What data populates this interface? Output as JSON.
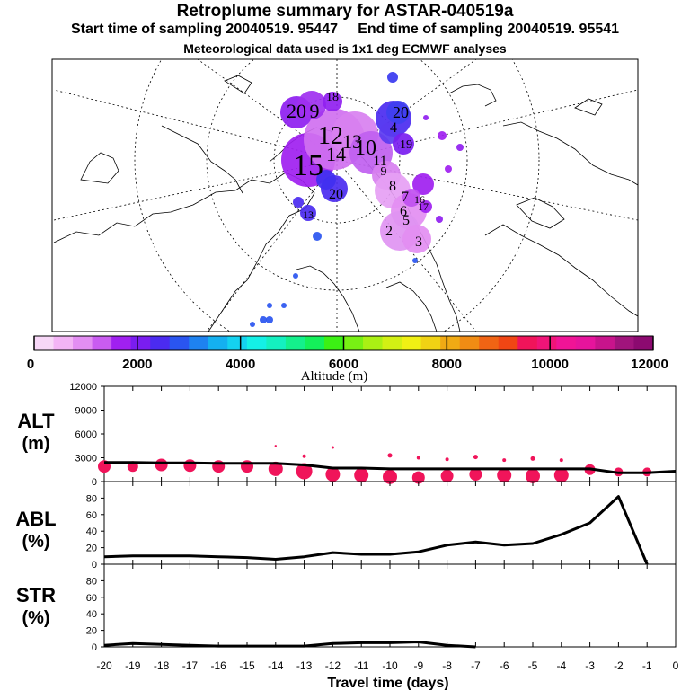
{
  "header": {
    "title": "Retroplume summary for ASTAR-040519a",
    "start": "Start time of sampling 20040519. 95447",
    "end": "End time of sampling 20040519. 95541",
    "met": "Meteorological data used is 1x1 deg ECMWF analyses"
  },
  "colorbar": {
    "label": "Altitude (m)",
    "ticks": [
      "0",
      "2000",
      "4000",
      "6000",
      "8000",
      "10000",
      "12000"
    ],
    "colors": [
      "#f7d7f7",
      "#f3b4f5",
      "#e38ef2",
      "#c95cf0",
      "#a020f0",
      "#7a1df0",
      "#4b2bf0",
      "#2a55f0",
      "#1e82f0",
      "#14b0f0",
      "#14d2f0",
      "#14f0e6",
      "#14f0c0",
      "#14f08c",
      "#14f05a",
      "#3cf014",
      "#78f014",
      "#aaf014",
      "#d2f014",
      "#f0f014",
      "#f0d214",
      "#f0aa14",
      "#f08c14",
      "#f06414",
      "#f04614",
      "#f0145a",
      "#f01478",
      "#f01496",
      "#e6149c",
      "#c8148c",
      "#a0147c",
      "#8c0a70"
    ]
  },
  "map": {
    "labels": [
      "20",
      "9",
      "18",
      "20",
      "4",
      "12",
      "19",
      "15",
      "20",
      "10",
      "11",
      "9",
      "8",
      "7",
      "6",
      "5",
      "13",
      "14",
      "2",
      "3",
      "16",
      "17",
      "13"
    ]
  },
  "panels": {
    "alt": {
      "l1": "ALT",
      "l2": "(m)"
    },
    "abl": {
      "l1": "ABL",
      "l2": "(%)"
    },
    "str": {
      "l1": "STR",
      "l2": "(%)"
    },
    "xlabel": "Travel time (days)"
  },
  "chart_data": [
    {
      "type": "line",
      "name": "ALT",
      "ylabel": "ALT (m)",
      "ylim": [
        0,
        12000
      ],
      "yticks": [
        "0",
        "3000",
        "6000",
        "9000",
        "12000"
      ],
      "x": [
        -20,
        -19,
        -18,
        -17,
        -16,
        -15,
        -14,
        -13,
        -12,
        -11,
        -10,
        -9,
        -8,
        -7,
        -6,
        -5,
        -4,
        -3,
        -2,
        -1,
        0
      ],
      "values": [
        2400,
        2400,
        2350,
        2350,
        2300,
        2300,
        2300,
        2100,
        1700,
        1700,
        1600,
        1600,
        1600,
        1600,
        1600,
        1600,
        1600,
        1600,
        1100,
        1100,
        1300
      ],
      "scatter": [
        {
          "x": -20,
          "y": 1900,
          "size": 7
        },
        {
          "x": -19,
          "y": 1900,
          "size": 6
        },
        {
          "x": -18,
          "y": 2100,
          "size": 7
        },
        {
          "x": -17,
          "y": 2000,
          "size": 7
        },
        {
          "x": -16,
          "y": 1900,
          "size": 7
        },
        {
          "x": -15,
          "y": 1900,
          "size": 7
        },
        {
          "x": -14,
          "y": 1600,
          "size": 8
        },
        {
          "x": -13,
          "y": 1300,
          "size": 9
        },
        {
          "x": -12,
          "y": 900,
          "size": 8
        },
        {
          "x": -11,
          "y": 800,
          "size": 8
        },
        {
          "x": -10,
          "y": 600,
          "size": 8
        },
        {
          "x": -9,
          "y": 500,
          "size": 7
        },
        {
          "x": -8,
          "y": 700,
          "size": 7
        },
        {
          "x": -7,
          "y": 900,
          "size": 7
        },
        {
          "x": -6,
          "y": 800,
          "size": 8
        },
        {
          "x": -5,
          "y": 700,
          "size": 8
        },
        {
          "x": -4,
          "y": 800,
          "size": 8
        },
        {
          "x": -3,
          "y": 1500,
          "size": 6
        },
        {
          "x": -2,
          "y": 1200,
          "size": 5
        },
        {
          "x": -1,
          "y": 1200,
          "size": 5
        },
        {
          "x": -12,
          "y": 4300,
          "size": 1.5
        },
        {
          "x": -10,
          "y": 3300,
          "size": 2.5
        },
        {
          "x": -9,
          "y": 3000,
          "size": 2
        },
        {
          "x": -8,
          "y": 2800,
          "size": 2
        },
        {
          "x": -7,
          "y": 3100,
          "size": 2.5
        },
        {
          "x": -6,
          "y": 2700,
          "size": 2
        },
        {
          "x": -5,
          "y": 2900,
          "size": 2.5
        },
        {
          "x": -4,
          "y": 2700,
          "size": 2
        },
        {
          "x": -13,
          "y": 3200,
          "size": 2
        },
        {
          "x": -14,
          "y": 4500,
          "size": 1.2
        }
      ]
    },
    {
      "type": "line",
      "name": "ABL",
      "ylabel": "ABL (%)",
      "ylim": [
        0,
        100
      ],
      "yticks": [
        "0",
        "20",
        "40",
        "60",
        "80"
      ],
      "x": [
        -20,
        -19,
        -18,
        -17,
        -16,
        -15,
        -14,
        -13,
        -12,
        -11,
        -10,
        -9,
        -8,
        -7,
        -6,
        -5,
        -4,
        -3,
        -2,
        -1
      ],
      "values": [
        9,
        10,
        10,
        10,
        9,
        8,
        6,
        9,
        14,
        12,
        12,
        15,
        23,
        27,
        23,
        25,
        36,
        50,
        82,
        0
      ]
    },
    {
      "type": "line",
      "name": "STR",
      "ylabel": "STR (%)",
      "ylim": [
        0,
        100
      ],
      "yticks": [
        "0",
        "20",
        "40",
        "60",
        "80"
      ],
      "x": [
        -20,
        -19,
        -18,
        -17,
        -16,
        -15,
        -14,
        -13,
        -12,
        -11,
        -10,
        -9,
        -8,
        -7
      ],
      "values": [
        2,
        4,
        3,
        2,
        1,
        1,
        1,
        1,
        4,
        5,
        5,
        6,
        2,
        0
      ],
      "xlabel": "Travel time (days)",
      "xticks": [
        "-20",
        "-19",
        "-18",
        "-17",
        "-16",
        "-15",
        "-14",
        "-13",
        "-12",
        "-11",
        "-10",
        "-9",
        "-8",
        "-7",
        "-6",
        "-5",
        "-4",
        "-3",
        "-2",
        "-1",
        "0"
      ]
    }
  ]
}
